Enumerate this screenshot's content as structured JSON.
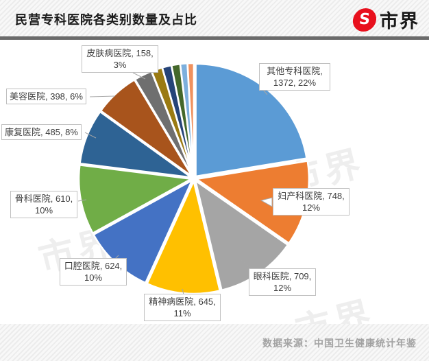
{
  "header": {
    "title": "民营专科医院各类别数量及占比",
    "brand_name": "市界",
    "brand_icon_glyph": "S",
    "brand_color": "#e8101d"
  },
  "footer": {
    "source": "数据来源：中国卫生健康统计年鉴"
  },
  "watermark": {
    "text": "市界"
  },
  "chart_data": {
    "type": "pie",
    "title": "民营专科医院各类别数量及占比",
    "legend": "none",
    "start_angle_deg": 0,
    "direction": "clockwise",
    "slices": [
      {
        "label": "其他专科医院",
        "value": 1372,
        "pct": "22%",
        "color": "#5B9BD5",
        "callout": "其他专科医院, 1372, 22%"
      },
      {
        "label": "妇产科医院",
        "value": 748,
        "pct": "12%",
        "color": "#ED7D31",
        "callout": "妇产科医院, 748, 12%"
      },
      {
        "label": "眼科医院",
        "value": 709,
        "pct": "12%",
        "color": "#A5A5A5",
        "callout": "眼科医院, 709, 12%"
      },
      {
        "label": "精神病医院",
        "value": 645,
        "pct": "11%",
        "color": "#FFC000",
        "callout": "精神病医院, 645, 11%"
      },
      {
        "label": "口腔医院",
        "value": 624,
        "pct": "10%",
        "color": "#4472C4",
        "callout": "口腔医院, 624, 10%"
      },
      {
        "label": "骨科医院",
        "value": 610,
        "pct": "10%",
        "color": "#70AD47",
        "callout": "骨科医院, 610, 10%"
      },
      {
        "label": "康复医院",
        "value": 485,
        "pct": "8%",
        "color": "#2E6394",
        "callout": "康复医院, 485, 8%"
      },
      {
        "label": "美容医院",
        "value": 398,
        "pct": "6%",
        "color": "#A8541C",
        "callout": "美容医院, 398, 6%"
      },
      {
        "label": "皮肤病医院",
        "value": 158,
        "pct": "3%",
        "color": "#6F6F6F",
        "callout": "皮肤病医院, 158, 3%"
      },
      {
        "label": "",
        "value": 95,
        "color": "#9A7A12",
        "estimated": true
      },
      {
        "label": "",
        "value": 80,
        "color": "#264478",
        "estimated": true
      },
      {
        "label": "",
        "value": 75,
        "color": "#44682B",
        "estimated": true
      },
      {
        "label": "",
        "value": 62,
        "color": "#7CAFDD",
        "estimated": true
      },
      {
        "label": "",
        "value": 55,
        "color": "#F0915E",
        "estimated": true
      }
    ]
  }
}
